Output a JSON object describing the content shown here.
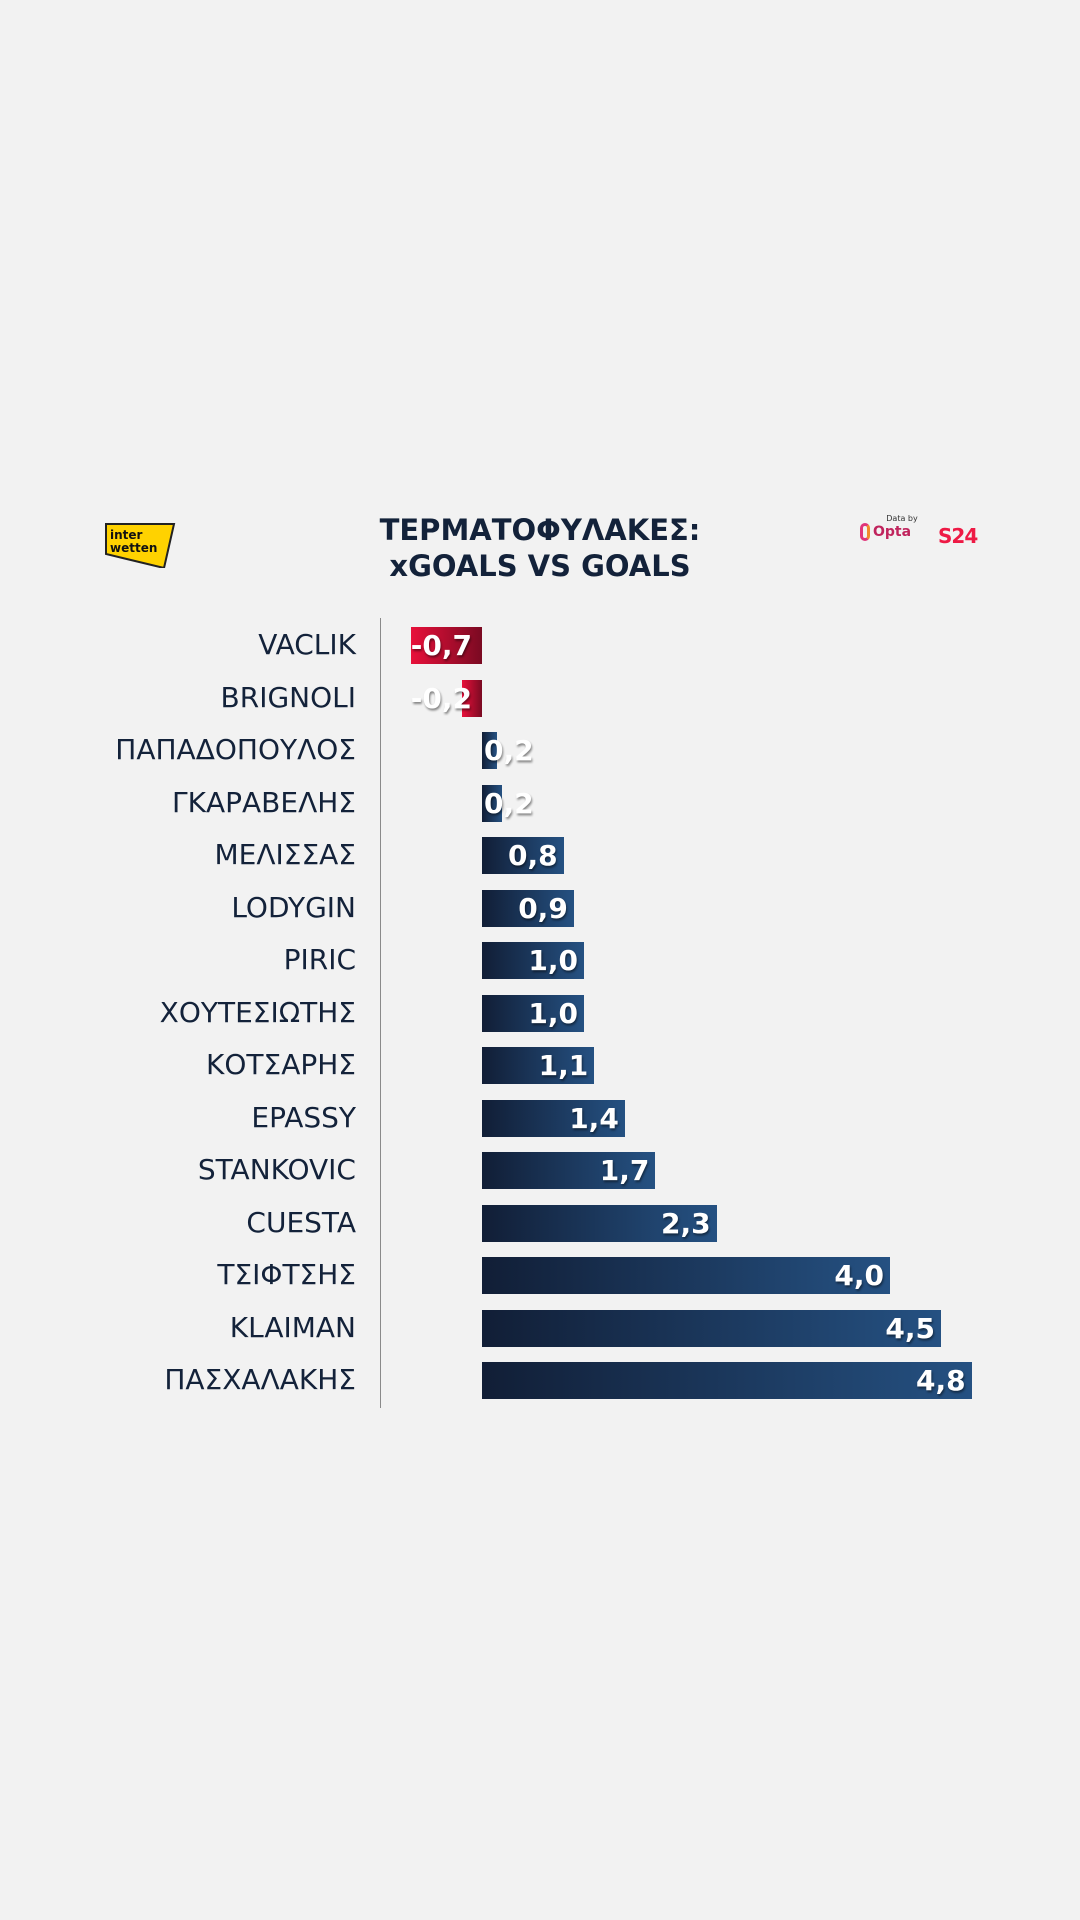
{
  "header": {
    "title_line1": "ΤΕΡΜΑΤΟΦΥΛΑΚΕΣ:",
    "title_line2": "xGOALS VS GOALS",
    "sponsor_logo": "interwetten",
    "data_credit": "Data by",
    "data_provider": "Opta",
    "brand": "S24"
  },
  "colors": {
    "positive_start": "#111e36",
    "positive_end": "#255182",
    "negative_start": "#e8103a",
    "negative_end": "#7a0a22",
    "text": "#13223a"
  },
  "chart_data": {
    "type": "bar",
    "orientation": "horizontal",
    "title": "ΤΕΡΜΑΤΟΦΥΛΑΚΕΣ: xGOALS VS GOALS",
    "categories": [
      "VACLIK",
      "BRIGNOLI",
      "ΠΑΠΑΔΟΠΟΥΛΟΣ",
      "ΓΚΑΡΑΒΕΛΗΣ",
      "ΜΕΛΙΣΣΑΣ",
      "LODYGIN",
      "PIRIC",
      "ΧΟΥΤΕΣΙΩΤΗΣ",
      "ΚΟΤΣΑΡΗΣ",
      "EPASSY",
      "STANKOVIC",
      "CUESTA",
      "ΤΣΙΦΤΣΗΣ",
      "KLAIMAN",
      "ΠΑΣΧΑΛΑΚΗΣ"
    ],
    "values": [
      -0.7,
      -0.2,
      0.15,
      0.2,
      0.8,
      0.9,
      1.0,
      1.0,
      1.1,
      1.4,
      1.7,
      2.3,
      4.0,
      4.5,
      4.8
    ],
    "labels": [
      "-0,7",
      "-0,2",
      "0,2",
      "0,2",
      "0,8",
      "0,9",
      "1,0",
      "1,0",
      "1,1",
      "1,4",
      "1,7",
      "2,3",
      "4,0",
      "4,5",
      "4,8"
    ],
    "xlim": [
      -0.8,
      4.8
    ],
    "grid": false,
    "legend": "none"
  }
}
